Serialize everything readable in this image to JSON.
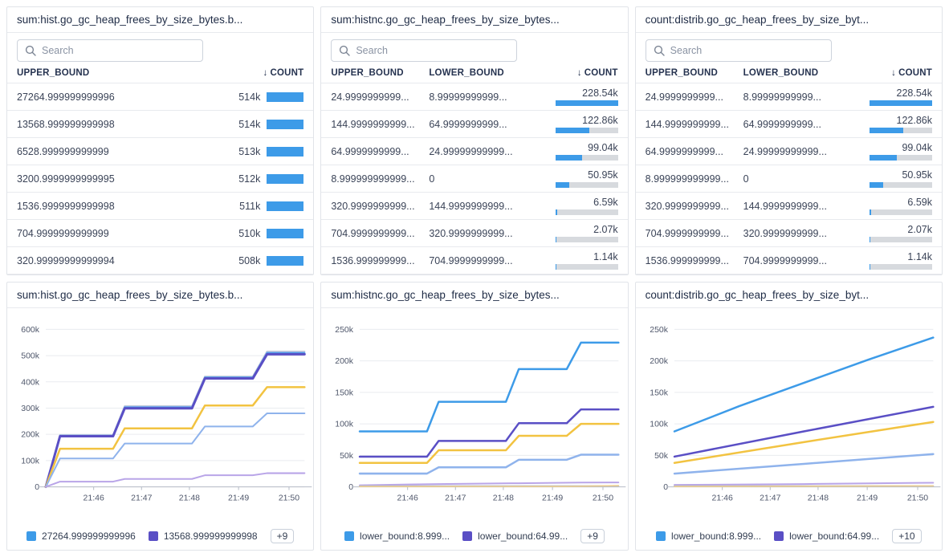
{
  "ui_colors": {
    "bar_fill": "#3d9be8",
    "bar_track": "#d7dade",
    "grid_line": "#e9ebef",
    "axis_line": "#b6bcc7",
    "tick_text": "#4f576b"
  },
  "tables": [
    {
      "title": "sum:hist.go_gc_heap_frees_by_size_bytes.b...",
      "search_placeholder": "Search",
      "sort_icon": "↓",
      "columns": [
        "UPPER_BOUND",
        "COUNT"
      ],
      "rows": [
        {
          "upper_bound": "27264.999999999996",
          "count": "514k",
          "bar_pct": 100
        },
        {
          "upper_bound": "13568.999999999998",
          "count": "514k",
          "bar_pct": 100
        },
        {
          "upper_bound": "6528.999999999999",
          "count": "513k",
          "bar_pct": 99.8
        },
        {
          "upper_bound": "3200.9999999999995",
          "count": "512k",
          "bar_pct": 99.6
        },
        {
          "upper_bound": "1536.9999999999998",
          "count": "511k",
          "bar_pct": 99.4
        },
        {
          "upper_bound": "704.9999999999999",
          "count": "510k",
          "bar_pct": 99.2
        },
        {
          "upper_bound": "320.99999999999994",
          "count": "508k",
          "bar_pct": 98.8
        }
      ]
    },
    {
      "title": "sum:histnc.go_gc_heap_frees_by_size_bytes...",
      "search_placeholder": "Search",
      "sort_icon": "↓",
      "columns": [
        "UPPER_BOUND",
        "LOWER_BOUND",
        "COUNT"
      ],
      "rows": [
        {
          "upper_bound": "24.9999999999...",
          "lower_bound": "8.99999999999...",
          "count": "228.54k",
          "bar_pct": 100
        },
        {
          "upper_bound": "144.9999999999...",
          "lower_bound": "64.9999999999...",
          "count": "122.86k",
          "bar_pct": 53.8
        },
        {
          "upper_bound": "64.9999999999...",
          "lower_bound": "24.99999999999...",
          "count": "99.04k",
          "bar_pct": 43.3
        },
        {
          "upper_bound": "8.999999999999...",
          "lower_bound": "0",
          "count": "50.95k",
          "bar_pct": 22.3
        },
        {
          "upper_bound": "320.9999999999...",
          "lower_bound": "144.9999999999...",
          "count": "6.59k",
          "bar_pct": 2.9
        },
        {
          "upper_bound": "704.9999999999...",
          "lower_bound": "320.9999999999...",
          "count": "2.07k",
          "bar_pct": 0.9
        },
        {
          "upper_bound": "1536.999999999...",
          "lower_bound": "704.9999999999...",
          "count": "1.14k",
          "bar_pct": 0.5
        }
      ]
    },
    {
      "title": "count:distrib.go_gc_heap_frees_by_size_byt...",
      "search_placeholder": "Search",
      "sort_icon": "↓",
      "columns": [
        "UPPER_BOUND",
        "LOWER_BOUND",
        "COUNT"
      ],
      "rows": [
        {
          "upper_bound": "24.9999999999...",
          "lower_bound": "8.99999999999...",
          "count": "228.54k",
          "bar_pct": 100
        },
        {
          "upper_bound": "144.9999999999...",
          "lower_bound": "64.9999999999...",
          "count": "122.86k",
          "bar_pct": 53.8
        },
        {
          "upper_bound": "64.9999999999...",
          "lower_bound": "24.99999999999...",
          "count": "99.04k",
          "bar_pct": 43.3
        },
        {
          "upper_bound": "8.999999999999...",
          "lower_bound": "0",
          "count": "50.95k",
          "bar_pct": 22.3
        },
        {
          "upper_bound": "320.9999999999...",
          "lower_bound": "144.9999999999...",
          "count": "6.59k",
          "bar_pct": 2.9
        },
        {
          "upper_bound": "704.9999999999...",
          "lower_bound": "320.9999999999...",
          "count": "2.07k",
          "bar_pct": 0.9
        },
        {
          "upper_bound": "1536.999999999...",
          "lower_bound": "704.9999999999...",
          "count": "1.14k",
          "bar_pct": 0.5
        }
      ]
    }
  ],
  "chart_data": [
    {
      "type": "line",
      "title": "sum:hist.go_gc_heap_frees_by_size_bytes.b...",
      "xlabel": "",
      "ylabel": "",
      "ylim": [
        0,
        600000
      ],
      "y_ticks": [
        {
          "v": 0,
          "label": "0"
        },
        {
          "v": 100000,
          "label": "100k"
        },
        {
          "v": 200000,
          "label": "200k"
        },
        {
          "v": 300000,
          "label": "300k"
        },
        {
          "v": 400000,
          "label": "400k"
        },
        {
          "v": 500000,
          "label": "500k"
        },
        {
          "v": 600000,
          "label": "600k"
        }
      ],
      "x_ticks": [
        {
          "pos": 0.185,
          "label": "21:46"
        },
        {
          "pos": 0.37,
          "label": "21:47"
        },
        {
          "pos": 0.555,
          "label": "21:48"
        },
        {
          "pos": 0.745,
          "label": "21:49"
        },
        {
          "pos": 0.94,
          "label": "21:50"
        }
      ],
      "grid": true,
      "legend_position": "bottom",
      "series": [
        {
          "name": "",
          "color": "#c6ccd6",
          "width": 2,
          "points": [
            [
              0,
              0
            ],
            [
              0.055,
              198000
            ],
            [
              0.26,
              198000
            ],
            [
              0.305,
              308000
            ],
            [
              0.565,
              308000
            ],
            [
              0.615,
              421000
            ],
            [
              0.8,
              421000
            ],
            [
              0.855,
              516000
            ],
            [
              1,
              516000
            ]
          ]
        },
        {
          "name": "",
          "color": "#8fb3ec",
          "width": 2,
          "points": [
            [
              0,
              0
            ],
            [
              0.055,
              196000
            ],
            [
              0.26,
              196000
            ],
            [
              0.305,
              305000
            ],
            [
              0.565,
              305000
            ],
            [
              0.615,
              418000
            ],
            [
              0.8,
              418000
            ],
            [
              0.855,
              512000
            ],
            [
              1,
              512000
            ]
          ]
        },
        {
          "name": "27264.999999999996",
          "color": "#3d9be8",
          "width": 2,
          "points": [
            [
              0,
              0
            ],
            [
              0.055,
              194500
            ],
            [
              0.26,
              194500
            ],
            [
              0.305,
              302000
            ],
            [
              0.565,
              302000
            ],
            [
              0.615,
              416000
            ],
            [
              0.8,
              416000
            ],
            [
              0.855,
              509000
            ],
            [
              1,
              509000
            ]
          ]
        },
        {
          "name": "13568.999999999998",
          "color": "#5a4fc5",
          "width": 3,
          "points": [
            [
              0,
              0
            ],
            [
              0.055,
              193000
            ],
            [
              0.26,
              193000
            ],
            [
              0.305,
              299000
            ],
            [
              0.565,
              299000
            ],
            [
              0.615,
              413000
            ],
            [
              0.8,
              413000
            ],
            [
              0.855,
              505000
            ],
            [
              1,
              505000
            ]
          ]
        },
        {
          "name": "",
          "color": "#f2c341",
          "width": 2.5,
          "points": [
            [
              0,
              0
            ],
            [
              0.055,
              145000
            ],
            [
              0.26,
              145000
            ],
            [
              0.305,
              223000
            ],
            [
              0.565,
              223000
            ],
            [
              0.615,
              310000
            ],
            [
              0.8,
              310000
            ],
            [
              0.855,
              380000
            ],
            [
              1,
              380000
            ]
          ]
        },
        {
          "name": "",
          "color": "#8fb3ec",
          "width": 2,
          "points": [
            [
              0,
              0
            ],
            [
              0.055,
              108000
            ],
            [
              0.26,
              108000
            ],
            [
              0.305,
              165000
            ],
            [
              0.565,
              165000
            ],
            [
              0.615,
              230000
            ],
            [
              0.8,
              230000
            ],
            [
              0.855,
              280000
            ],
            [
              1,
              280000
            ]
          ]
        },
        {
          "name": "",
          "color": "#b9a5e8",
          "width": 2,
          "points": [
            [
              0,
              0
            ],
            [
              0.055,
              20000
            ],
            [
              0.26,
              20000
            ],
            [
              0.305,
              30000
            ],
            [
              0.565,
              30000
            ],
            [
              0.615,
              44000
            ],
            [
              0.8,
              44000
            ],
            [
              0.855,
              52000
            ],
            [
              1,
              52000
            ]
          ]
        }
      ],
      "legend": [
        {
          "label": "27264.999999999996",
          "color": "#3d9be8"
        },
        {
          "label": "13568.999999999998",
          "color": "#5a4fc5"
        }
      ],
      "legend_more": "+9"
    },
    {
      "type": "line",
      "title": "sum:histnc.go_gc_heap_frees_by_size_bytes...",
      "xlabel": "",
      "ylabel": "",
      "ylim": [
        0,
        250000
      ],
      "y_ticks": [
        {
          "v": 0,
          "label": "0"
        },
        {
          "v": 50000,
          "label": "50k"
        },
        {
          "v": 100000,
          "label": "100k"
        },
        {
          "v": 150000,
          "label": "150k"
        },
        {
          "v": 200000,
          "label": "200k"
        },
        {
          "v": 250000,
          "label": "250k"
        }
      ],
      "x_ticks": [
        {
          "pos": 0.185,
          "label": "21:46"
        },
        {
          "pos": 0.37,
          "label": "21:47"
        },
        {
          "pos": 0.555,
          "label": "21:48"
        },
        {
          "pos": 0.745,
          "label": "21:49"
        },
        {
          "pos": 0.94,
          "label": "21:50"
        }
      ],
      "grid": true,
      "legend_position": "bottom",
      "series": [
        {
          "name": "lower_bound:8.999...",
          "color": "#3d9be8",
          "width": 2.5,
          "points": [
            [
              0,
              88000
            ],
            [
              0.26,
              88000
            ],
            [
              0.305,
              135000
            ],
            [
              0.565,
              135000
            ],
            [
              0.615,
              187000
            ],
            [
              0.8,
              187000
            ],
            [
              0.855,
              229000
            ],
            [
              1,
              229000
            ]
          ]
        },
        {
          "name": "lower_bound:64.99...",
          "color": "#5a4fc5",
          "width": 2.5,
          "points": [
            [
              0,
              48000
            ],
            [
              0.26,
              48000
            ],
            [
              0.305,
              73000
            ],
            [
              0.565,
              73000
            ],
            [
              0.615,
              101000
            ],
            [
              0.8,
              101000
            ],
            [
              0.855,
              123000
            ],
            [
              1,
              123000
            ]
          ]
        },
        {
          "name": "",
          "color": "#f2c341",
          "width": 2.5,
          "points": [
            [
              0,
              38000
            ],
            [
              0.26,
              38000
            ],
            [
              0.305,
              58000
            ],
            [
              0.565,
              58000
            ],
            [
              0.615,
              81000
            ],
            [
              0.8,
              81000
            ],
            [
              0.855,
              100000
            ],
            [
              1,
              100000
            ]
          ]
        },
        {
          "name": "",
          "color": "#8fb3ec",
          "width": 2.5,
          "points": [
            [
              0,
              21000
            ],
            [
              0.26,
              21000
            ],
            [
              0.305,
              31000
            ],
            [
              0.565,
              31000
            ],
            [
              0.615,
              43000
            ],
            [
              0.8,
              43000
            ],
            [
              0.855,
              51000
            ],
            [
              1,
              51000
            ]
          ]
        },
        {
          "name": "",
          "color": "#b9a5e8",
          "width": 2,
          "points": [
            [
              0,
              2500
            ],
            [
              0.305,
              4500
            ],
            [
              0.615,
              5800
            ],
            [
              0.855,
              6800
            ],
            [
              1,
              7000
            ]
          ]
        },
        {
          "name": "",
          "color": "#b9bec8",
          "width": 2,
          "points": [
            [
              0,
              1200
            ],
            [
              1,
              1200
            ]
          ]
        },
        {
          "name": "",
          "color": "#edcd8d",
          "width": 1.5,
          "points": [
            [
              0,
              400
            ],
            [
              0.8,
              600
            ],
            [
              1,
              2000
            ]
          ]
        }
      ],
      "legend": [
        {
          "label": "lower_bound:8.999...",
          "color": "#3d9be8"
        },
        {
          "label": "lower_bound:64.99...",
          "color": "#5a4fc5"
        }
      ],
      "legend_more": "+9"
    },
    {
      "type": "line",
      "title": "count:distrib.go_gc_heap_frees_by_size_byt...",
      "xlabel": "",
      "ylabel": "",
      "ylim": [
        0,
        250000
      ],
      "y_ticks": [
        {
          "v": 0,
          "label": "0"
        },
        {
          "v": 50000,
          "label": "50k"
        },
        {
          "v": 100000,
          "label": "100k"
        },
        {
          "v": 150000,
          "label": "150k"
        },
        {
          "v": 200000,
          "label": "200k"
        },
        {
          "v": 250000,
          "label": "250k"
        }
      ],
      "x_ticks": [
        {
          "pos": 0.185,
          "label": "21:46"
        },
        {
          "pos": 0.37,
          "label": "21:47"
        },
        {
          "pos": 0.555,
          "label": "21:48"
        },
        {
          "pos": 0.745,
          "label": "21:49"
        },
        {
          "pos": 0.94,
          "label": "21:50"
        }
      ],
      "grid": true,
      "legend_position": "bottom",
      "series": [
        {
          "name": "lower_bound:8.999...",
          "color": "#3d9be8",
          "width": 2.5,
          "points": [
            [
              0,
              88000
            ],
            [
              0.25,
              128000
            ],
            [
              0.5,
              165000
            ],
            [
              0.75,
              202000
            ],
            [
              1,
              237000
            ]
          ]
        },
        {
          "name": "lower_bound:64.99...",
          "color": "#5a4fc5",
          "width": 2.5,
          "points": [
            [
              0,
              48000
            ],
            [
              0.5,
              88000
            ],
            [
              1,
              127000
            ]
          ]
        },
        {
          "name": "",
          "color": "#f2c341",
          "width": 2.5,
          "points": [
            [
              0,
              38000
            ],
            [
              0.5,
              71000
            ],
            [
              1,
              103000
            ]
          ]
        },
        {
          "name": "",
          "color": "#8fb3ec",
          "width": 2.5,
          "points": [
            [
              0,
              21000
            ],
            [
              0.5,
              36500
            ],
            [
              1,
              52000
            ]
          ]
        },
        {
          "name": "",
          "color": "#b9a5e8",
          "width": 2,
          "points": [
            [
              0,
              3000
            ],
            [
              0.5,
              4500
            ],
            [
              1,
              6500
            ]
          ]
        },
        {
          "name": "",
          "color": "#b9bec8",
          "width": 2,
          "points": [
            [
              0,
              1200
            ],
            [
              1,
              1200
            ]
          ]
        },
        {
          "name": "",
          "color": "#edcd8d",
          "width": 1.5,
          "points": [
            [
              0,
              400
            ],
            [
              1,
              1500
            ]
          ]
        }
      ],
      "legend": [
        {
          "label": "lower_bound:8.999...",
          "color": "#3d9be8"
        },
        {
          "label": "lower_bound:64.99...",
          "color": "#5a4fc5"
        }
      ],
      "legend_more": "+10"
    }
  ]
}
